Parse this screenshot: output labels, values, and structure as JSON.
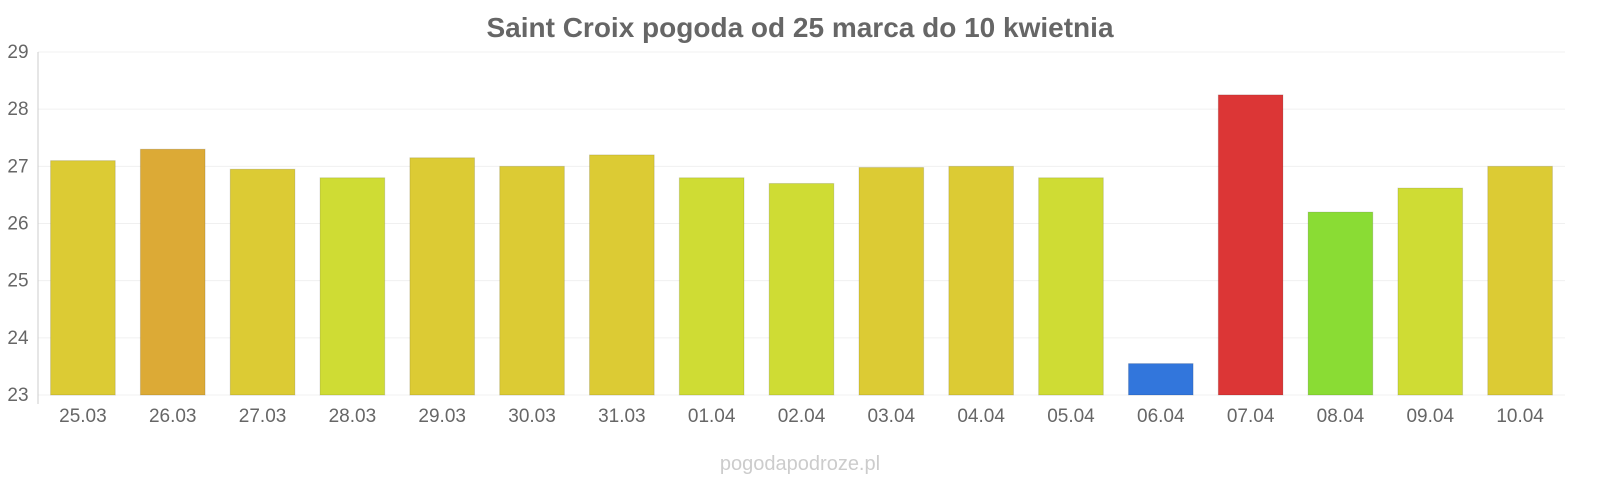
{
  "chart_data": {
    "type": "bar",
    "title": "Saint Croix pogoda od 25 marca do 10 kwietnia",
    "xlabel": "",
    "ylabel": "",
    "ylim": [
      23,
      29
    ],
    "yticks": [
      "23",
      "24",
      "25",
      "26",
      "27",
      "28",
      "29"
    ],
    "grid": true,
    "categories": [
      "25.03",
      "26.03",
      "27.03",
      "28.03",
      "29.03",
      "30.03",
      "31.03",
      "01.04",
      "02.04",
      "03.04",
      "04.04",
      "05.04",
      "06.04",
      "07.04",
      "08.04",
      "09.04",
      "10.04"
    ],
    "values": [
      27.1,
      27.3,
      26.95,
      26.8,
      27.15,
      27.0,
      27.2,
      26.8,
      26.7,
      26.98,
      27.0,
      26.8,
      23.55,
      28.25,
      26.2,
      26.62,
      27.0
    ],
    "colors": [
      "#dccb34",
      "#dcaa36",
      "#dccb34",
      "#cfdc34",
      "#dccb34",
      "#dccb34",
      "#dccb34",
      "#cfdc34",
      "#cfdc34",
      "#dccb34",
      "#dccb34",
      "#cfdc34",
      "#3276dc",
      "#dc3636",
      "#8adc34",
      "#cfdc34",
      "#dccb34"
    ]
  },
  "watermark": "pogodapodroze.pl"
}
